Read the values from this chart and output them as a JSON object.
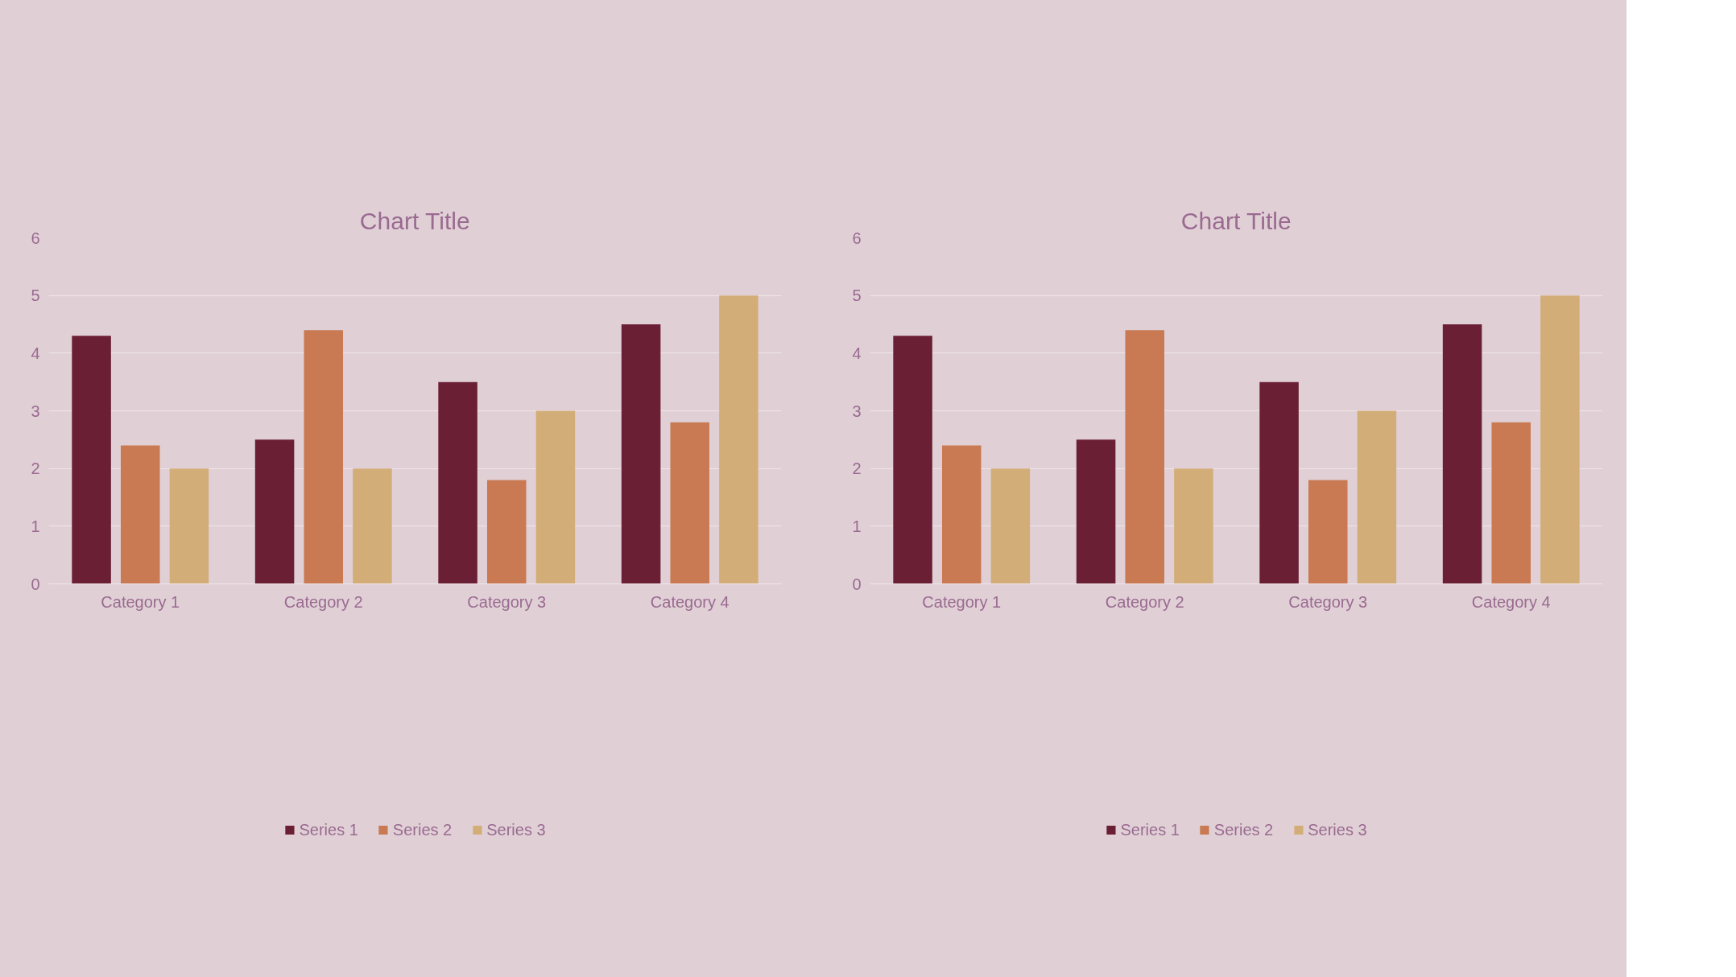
{
  "chart_data": [
    {
      "type": "bar",
      "title": "Chart Title",
      "categories": [
        "Category 1",
        "Category 2",
        "Category 3",
        "Category 4"
      ],
      "series": [
        {
          "name": "Series 1",
          "color": "#6b1f35",
          "values": [
            4.3,
            2.5,
            3.5,
            4.5
          ]
        },
        {
          "name": "Series 2",
          "color": "#c97a52",
          "values": [
            2.4,
            4.4,
            1.8,
            2.8
          ]
        },
        {
          "name": "Series 3",
          "color": "#d3ad78",
          "values": [
            2,
            2,
            3,
            5
          ]
        }
      ],
      "ylim": [
        0,
        6
      ],
      "yticks": [
        0,
        1,
        2,
        3,
        4,
        5,
        6
      ],
      "grid": "y",
      "legend": "bottom"
    },
    {
      "type": "bar",
      "title": "Chart Title",
      "categories": [
        "Category 1",
        "Category 2",
        "Category 3",
        "Category 4"
      ],
      "series": [
        {
          "name": "Series 1",
          "color": "#6b1f35",
          "values": [
            4.3,
            2.5,
            3.5,
            4.5
          ]
        },
        {
          "name": "Series 2",
          "color": "#c97a52",
          "values": [
            2.4,
            4.4,
            1.8,
            2.8
          ]
        },
        {
          "name": "Series 3",
          "color": "#d3ad78",
          "values": [
            2,
            2,
            3,
            5
          ]
        }
      ],
      "ylim": [
        0,
        6
      ],
      "yticks": [
        0,
        1,
        2,
        3,
        4,
        5,
        6
      ],
      "grid": "y",
      "legend": "bottom"
    }
  ]
}
